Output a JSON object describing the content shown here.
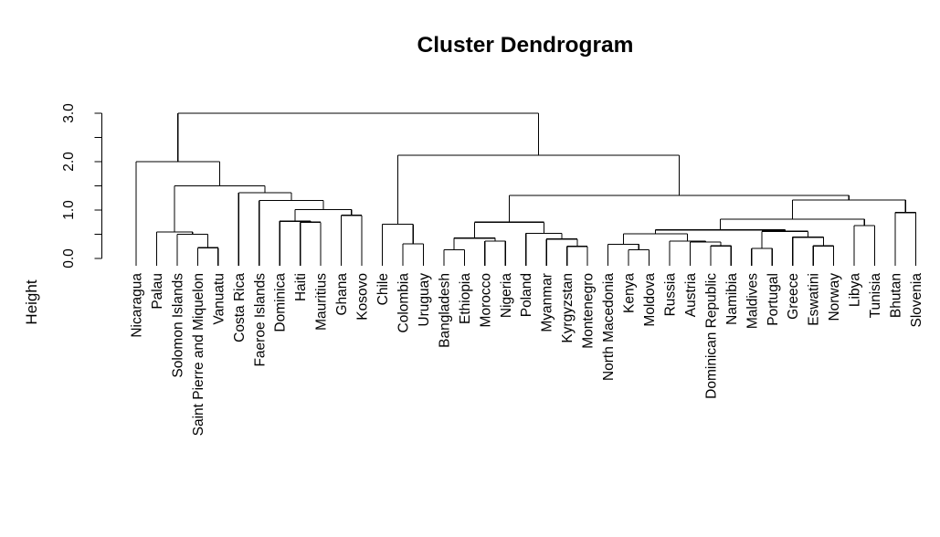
{
  "title": "Cluster Dendrogram",
  "colors": {
    "line": "#000000",
    "text": "#000000",
    "background": "#ffffff"
  },
  "chart_data": {
    "type": "dendrogram",
    "title": "Cluster Dendrogram",
    "ylabel": "Height",
    "ylim": [
      0,
      3
    ],
    "grid": false,
    "yticks": [
      {
        "v": 0.0,
        "label": "0.0"
      },
      {
        "v": 0.5,
        "label": ""
      },
      {
        "v": 1.0,
        "label": "1.0"
      },
      {
        "v": 1.5,
        "label": ""
      },
      {
        "v": 2.0,
        "label": "2.0"
      },
      {
        "v": 2.5,
        "label": ""
      },
      {
        "v": 3.0,
        "label": "3.0"
      }
    ],
    "leaf_order": [
      "Nicaragua",
      "Palau",
      "Solomon Islands",
      "Saint Pierre and Miquelon",
      "Vanuatu",
      "Costa Rica",
      "Faeroe Islands",
      "Dominica",
      "Haiti",
      "Mauritius",
      "Ghana",
      "Kosovo",
      "Chile",
      "Colombia",
      "Uruguay",
      "Bangladesh",
      "Ethiopia",
      "Morocco",
      "Nigeria",
      "Poland",
      "Myanmar",
      "Kyrgyzstan",
      "Montenegro",
      "North Macedonia",
      "Kenya",
      "Moldova",
      "Russia",
      "Austria",
      "Dominican Republic",
      "Namibia",
      "Maldives",
      "Portugal",
      "Greece",
      "Eswatini",
      "Norway",
      "Libya",
      "Tunisia",
      "Bhutan",
      "Slovenia"
    ],
    "tree": [
      3.0,
      [
        2.0,
        "Nicaragua",
        [
          1.5,
          [
            0.55,
            "Palau",
            [
              0.5,
              "Solomon Islands",
              [
                0.22,
                "Saint Pierre and Miquelon",
                "Vanuatu"
              ]
            ]
          ],
          [
            1.36,
            "Costa Rica",
            [
              1.2,
              "Faeroe Islands",
              [
                1.01,
                [
                  0.77,
                  "Dominica",
                  [
                    0.75,
                    "Haiti",
                    "Mauritius"
                  ]
                ],
                [
                  0.89,
                  "Ghana",
                  "Kosovo"
                ]
              ]
            ]
          ]
        ]
      ],
      [
        2.13,
        [
          0.71,
          "Chile",
          [
            0.3,
            "Colombia",
            "Uruguay"
          ]
        ],
        [
          1.3,
          [
            0.75,
            [
              0.42,
              [
                0.18,
                "Bangladesh",
                "Ethiopia"
              ],
              [
                0.36,
                "Morocco",
                "Nigeria"
              ]
            ],
            [
              0.52,
              "Poland",
              [
                0.4,
                "Myanmar",
                [
                  0.25,
                  "Kyrgyzstan",
                  "Montenegro"
                ]
              ]
            ]
          ],
          [
            1.21,
            [
              0.81,
              [
                0.59,
                [
                  0.51,
                  [
                    0.29,
                    "North Macedonia",
                    [
                      0.18,
                      "Kenya",
                      "Moldova"
                    ]
                  ],
                  [
                    0.36,
                    "Russia",
                    [
                      0.34,
                      "Austria",
                      [
                        0.26,
                        "Dominican Republic",
                        "Namibia"
                      ]
                    ]
                  ]
                ],
                [
                  0.56,
                  [
                    0.21,
                    "Maldives",
                    "Portugal"
                  ],
                  [
                    0.44,
                    "Greece",
                    [
                      0.26,
                      "Eswatini",
                      "Norway"
                    ]
                  ]
                ]
              ],
              [
                0.68,
                "Libya",
                "Tunisia"
              ]
            ],
            [
              0.95,
              "Bhutan",
              "Slovenia"
            ]
          ]
        ]
      ]
    ]
  }
}
